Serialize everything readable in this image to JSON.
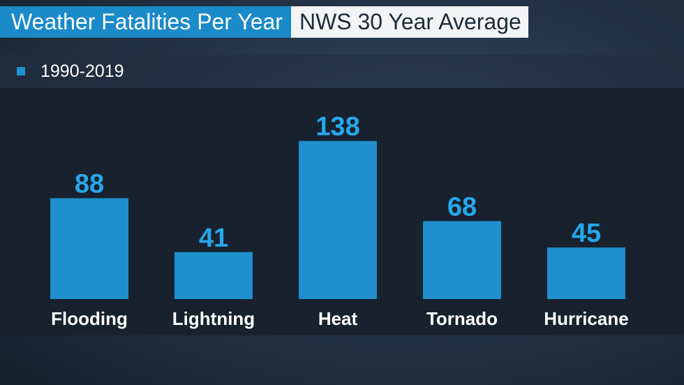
{
  "header": {
    "title": "Weather Fatalities Per Year",
    "subtitle": "NWS 30 Year Average"
  },
  "colors": {
    "title_bg": "#1a8ac9",
    "subtitle_bg": "#f3f4f5",
    "bar": "#1f8fcd",
    "value_label": "#27a7ec"
  },
  "chart_data": {
    "type": "bar",
    "title": "Weather Fatalities Per Year",
    "subtitle": "NWS 30 Year Average",
    "categories": [
      "Flooding",
      "Lightning",
      "Heat",
      "Tornado",
      "Hurricane"
    ],
    "series": [
      {
        "name": "1990-2019",
        "values": [
          88,
          41,
          138,
          68,
          45
        ]
      }
    ],
    "legend": {
      "position": "top-left",
      "entries": [
        "1990-2019"
      ]
    },
    "ylim": [
      0,
      150
    ],
    "grid": false
  }
}
